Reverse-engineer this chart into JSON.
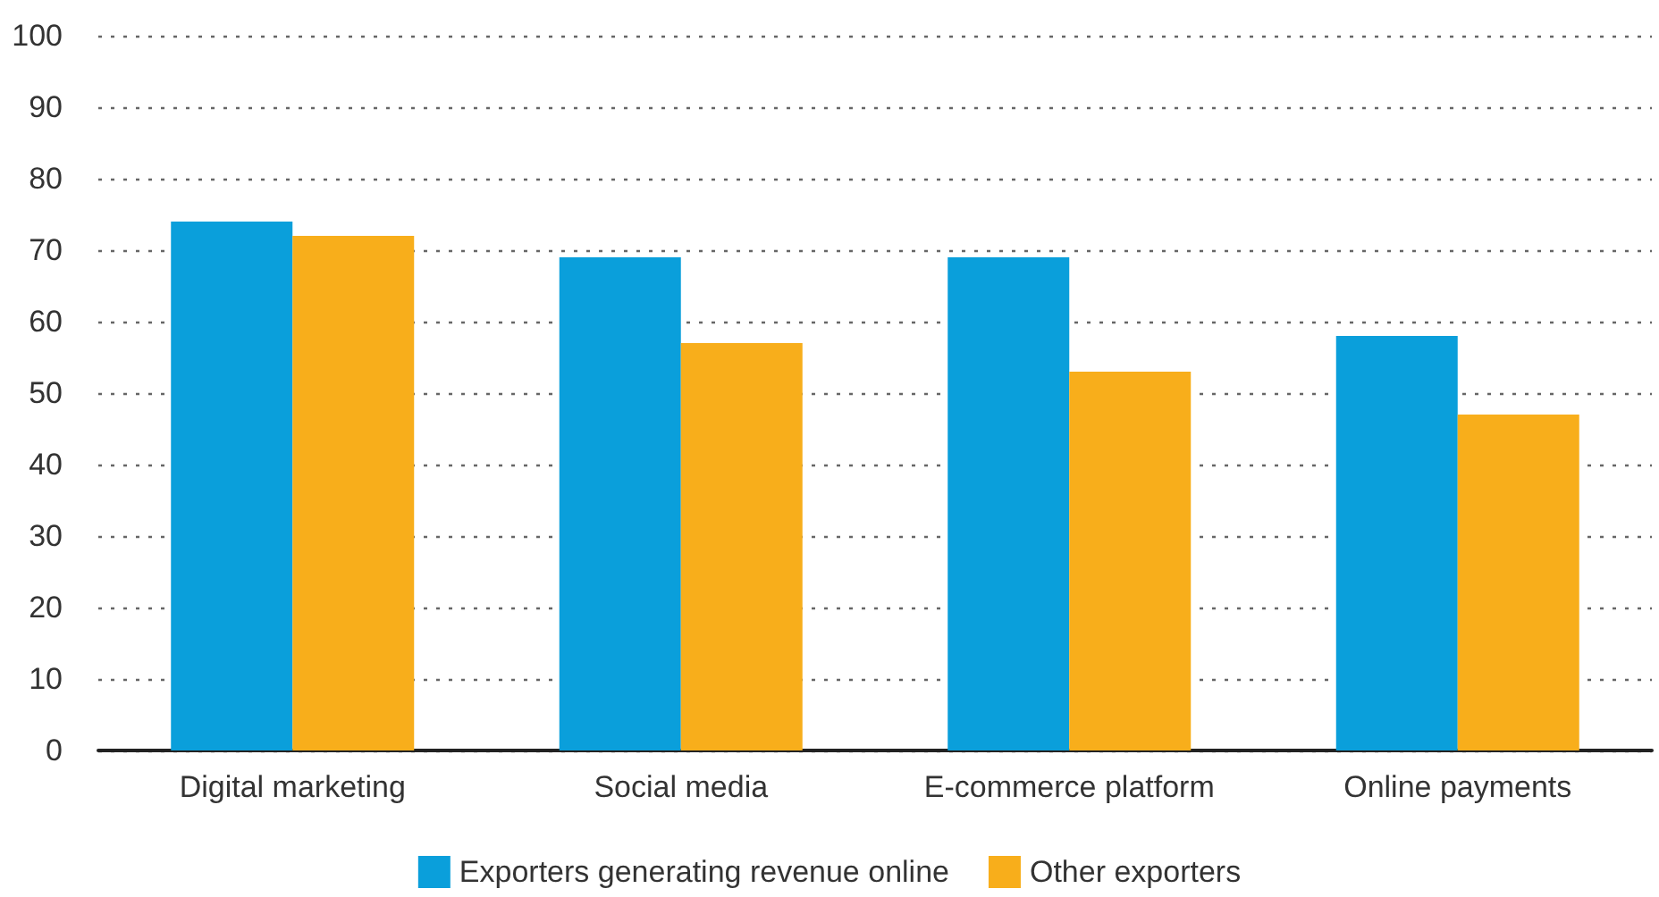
{
  "chart_data": {
    "type": "bar",
    "categories": [
      "Digital marketing",
      "Social media",
      "E-commerce platform",
      "Online payments"
    ],
    "series": [
      {
        "name": "Exporters generating revenue online",
        "color": "#0a9fdb",
        "values": [
          74,
          69,
          69,
          58
        ]
      },
      {
        "name": "Other exporters",
        "color": "#f8ae1b",
        "values": [
          72,
          57,
          53,
          47
        ]
      }
    ],
    "ylim": [
      0,
      100
    ],
    "yticks": [
      0,
      10,
      20,
      30,
      40,
      50,
      60,
      70,
      80,
      90,
      100
    ],
    "grid": "y",
    "legend": "bottom"
  }
}
